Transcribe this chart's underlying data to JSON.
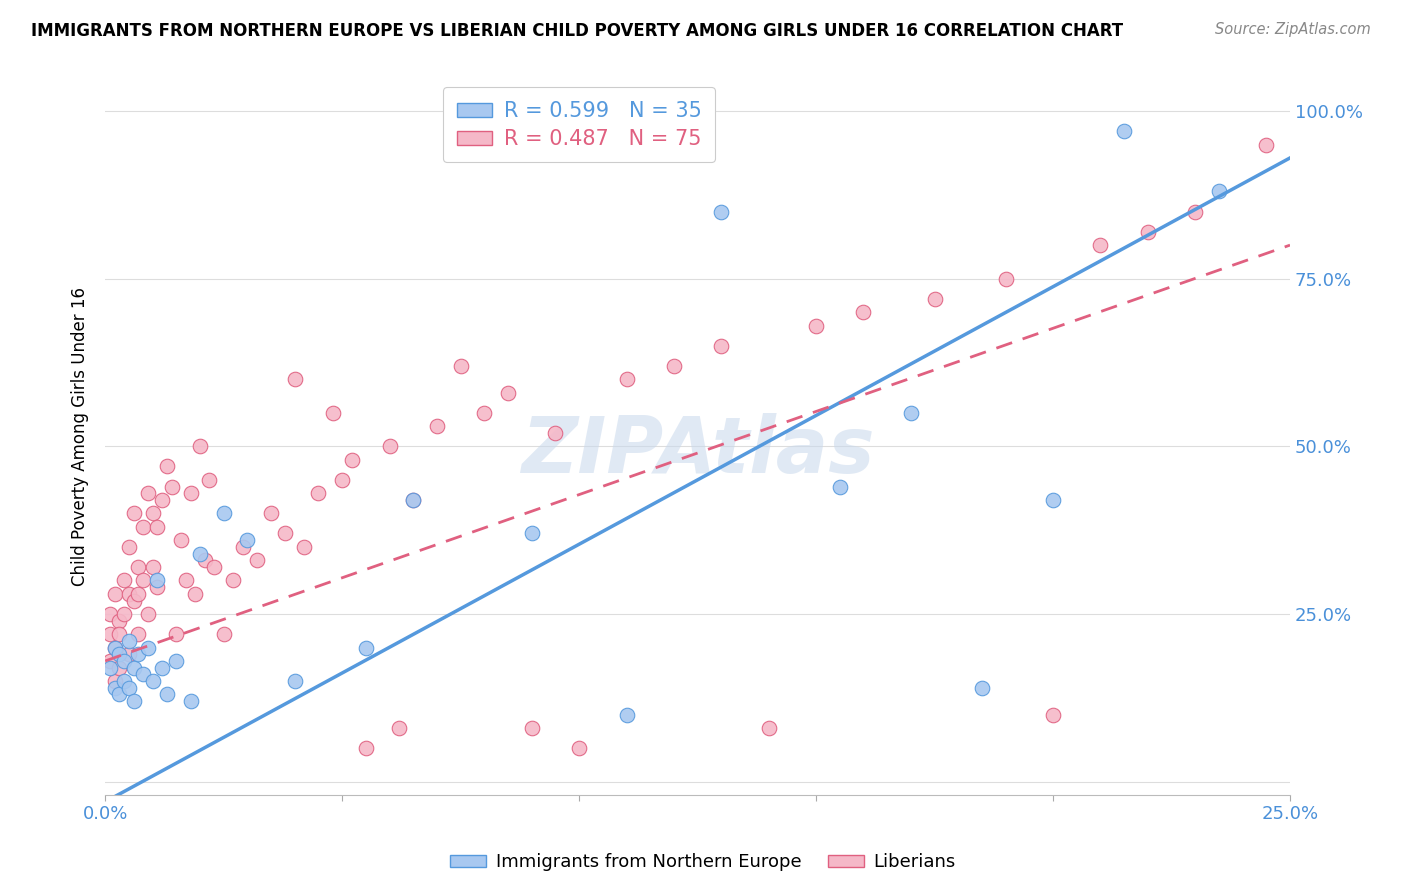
{
  "title": "IMMIGRANTS FROM NORTHERN EUROPE VS LIBERIAN CHILD POVERTY AMONG GIRLS UNDER 16 CORRELATION CHART",
  "source": "Source: ZipAtlas.com",
  "ylabel": "Child Poverty Among Girls Under 16",
  "yticks": [
    0.0,
    0.25,
    0.5,
    0.75,
    1.0
  ],
  "ytick_labels": [
    "",
    "25.0%",
    "50.0%",
    "75.0%",
    "100.0%"
  ],
  "xlim": [
    0.0,
    0.25
  ],
  "ylim": [
    -0.02,
    1.05
  ],
  "watermark": "ZIPAtlas",
  "blue_R": 0.599,
  "blue_N": 35,
  "pink_R": 0.487,
  "pink_N": 75,
  "blue_color": "#A8C8F0",
  "pink_color": "#F5B8C8",
  "blue_line_color": "#5599DD",
  "pink_line_color": "#E06080",
  "background_color": "#FFFFFF",
  "blue_scatter_x": [
    0.001,
    0.002,
    0.002,
    0.003,
    0.003,
    0.004,
    0.004,
    0.005,
    0.005,
    0.006,
    0.006,
    0.007,
    0.008,
    0.009,
    0.01,
    0.011,
    0.012,
    0.013,
    0.015,
    0.018,
    0.02,
    0.025,
    0.03,
    0.04,
    0.055,
    0.065,
    0.09,
    0.11,
    0.13,
    0.155,
    0.17,
    0.185,
    0.2,
    0.215,
    0.235
  ],
  "blue_scatter_y": [
    0.17,
    0.2,
    0.14,
    0.19,
    0.13,
    0.18,
    0.15,
    0.14,
    0.21,
    0.17,
    0.12,
    0.19,
    0.16,
    0.2,
    0.15,
    0.3,
    0.17,
    0.13,
    0.18,
    0.12,
    0.34,
    0.4,
    0.36,
    0.15,
    0.2,
    0.42,
    0.37,
    0.1,
    0.85,
    0.44,
    0.55,
    0.14,
    0.42,
    0.97,
    0.88
  ],
  "pink_scatter_x": [
    0.001,
    0.001,
    0.001,
    0.002,
    0.002,
    0.002,
    0.003,
    0.003,
    0.003,
    0.004,
    0.004,
    0.005,
    0.005,
    0.005,
    0.006,
    0.006,
    0.007,
    0.007,
    0.007,
    0.008,
    0.008,
    0.009,
    0.009,
    0.01,
    0.01,
    0.011,
    0.011,
    0.012,
    0.013,
    0.014,
    0.015,
    0.016,
    0.017,
    0.018,
    0.019,
    0.02,
    0.021,
    0.022,
    0.023,
    0.025,
    0.027,
    0.029,
    0.032,
    0.035,
    0.038,
    0.04,
    0.042,
    0.045,
    0.048,
    0.05,
    0.052,
    0.055,
    0.06,
    0.062,
    0.065,
    0.07,
    0.075,
    0.08,
    0.085,
    0.09,
    0.095,
    0.1,
    0.11,
    0.12,
    0.13,
    0.14,
    0.15,
    0.16,
    0.175,
    0.19,
    0.2,
    0.21,
    0.22,
    0.23,
    0.245
  ],
  "pink_scatter_y": [
    0.22,
    0.18,
    0.25,
    0.28,
    0.2,
    0.15,
    0.24,
    0.22,
    0.17,
    0.3,
    0.25,
    0.28,
    0.35,
    0.19,
    0.4,
    0.27,
    0.32,
    0.28,
    0.22,
    0.38,
    0.3,
    0.43,
    0.25,
    0.4,
    0.32,
    0.38,
    0.29,
    0.42,
    0.47,
    0.44,
    0.22,
    0.36,
    0.3,
    0.43,
    0.28,
    0.5,
    0.33,
    0.45,
    0.32,
    0.22,
    0.3,
    0.35,
    0.33,
    0.4,
    0.37,
    0.6,
    0.35,
    0.43,
    0.55,
    0.45,
    0.48,
    0.05,
    0.5,
    0.08,
    0.42,
    0.53,
    0.62,
    0.55,
    0.58,
    0.08,
    0.52,
    0.05,
    0.6,
    0.62,
    0.65,
    0.08,
    0.68,
    0.7,
    0.72,
    0.75,
    0.1,
    0.8,
    0.82,
    0.85,
    0.95
  ]
}
